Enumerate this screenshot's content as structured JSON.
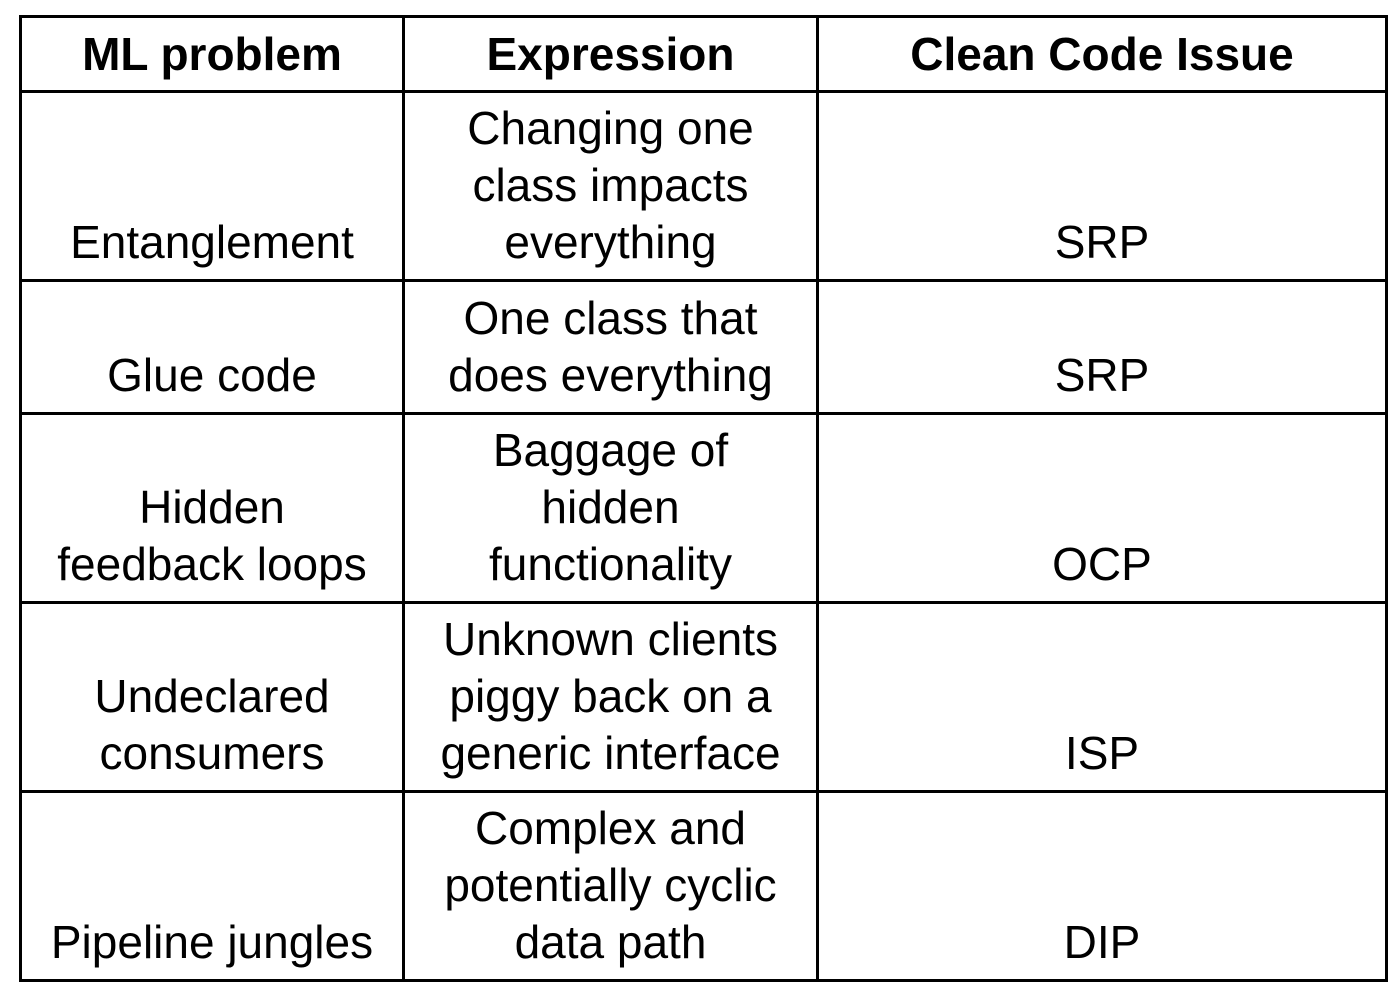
{
  "table": {
    "headers": [
      "ML problem",
      "Expression",
      "Clean Code Issue"
    ],
    "rows": [
      {
        "ml_problem": [
          "Entanglement"
        ],
        "expression": [
          "Changing one",
          "class impacts",
          "everything"
        ],
        "issue": "SRP"
      },
      {
        "ml_problem": [
          "Glue code"
        ],
        "expression": [
          "One class that",
          "does everything"
        ],
        "issue": "SRP"
      },
      {
        "ml_problem": [
          "Hidden",
          "feedback loops"
        ],
        "expression": [
          "Baggage of",
          "hidden",
          "functionality"
        ],
        "issue": "OCP"
      },
      {
        "ml_problem": [
          "Undeclared",
          "consumers"
        ],
        "expression": [
          "Unknown clients",
          "piggy back on a",
          "generic interface"
        ],
        "issue": "ISP"
      },
      {
        "ml_problem": [
          "Pipeline jungles"
        ],
        "expression": [
          "Complex and",
          "potentially cyclic",
          "data path"
        ],
        "issue": "DIP"
      }
    ]
  }
}
